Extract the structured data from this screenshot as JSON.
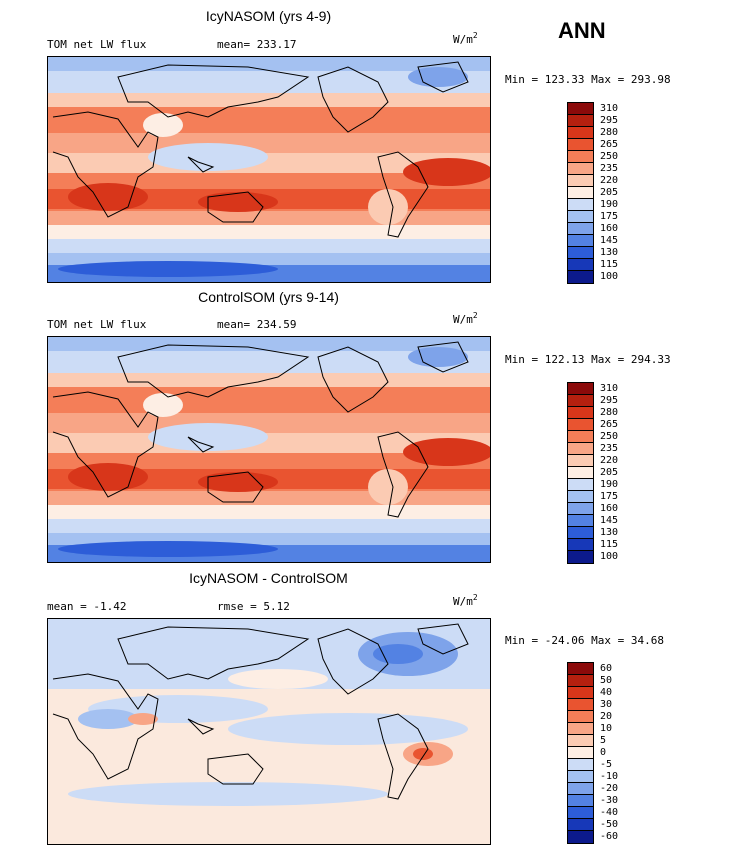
{
  "season": "ANN",
  "units": "W/m",
  "units_exp": "2",
  "panels": [
    {
      "title": "IcyNASOM (yrs 4-9)",
      "left_label": "TOM net LW flux",
      "stat_label": "mean= 233.17",
      "minmax": "Min = 123.33 Max = 293.98",
      "levels": [
        "310",
        "295",
        "280",
        "265",
        "250",
        "235",
        "220",
        "205",
        "190",
        "175",
        "160",
        "145",
        "130",
        "115",
        "100"
      ]
    },
    {
      "title": "ControlSOM (yrs 9-14)",
      "left_label": "TOM net LW flux",
      "stat_label": "mean= 234.59",
      "minmax": "Min = 122.13 Max = 294.33",
      "levels": [
        "310",
        "295",
        "280",
        "265",
        "250",
        "235",
        "220",
        "205",
        "190",
        "175",
        "160",
        "145",
        "130",
        "115",
        "100"
      ]
    },
    {
      "title": "IcyNASOM - ControlSOM",
      "left_label": "mean =   -1.42",
      "stat_label": "rmse =    5.12",
      "minmax": "Min = -24.06 Max =  34.68",
      "levels": [
        "60",
        "50",
        "40",
        "30",
        "20",
        "10",
        "5",
        "0",
        "-5",
        "-10",
        "-20",
        "-30",
        "-40",
        "-50",
        "-60"
      ]
    }
  ],
  "colors": {
    "colorbar": [
      "#8b0a0a",
      "#b5200f",
      "#d8361a",
      "#e95430",
      "#f47e58",
      "#f8a586",
      "#fbcbb3",
      "#fdeee4",
      "#ccdcf6",
      "#a4c1f1",
      "#7ea3ea",
      "#5382e3",
      "#2d5dd8",
      "#1738b8",
      "#0c1a8c"
    ],
    "panel_bg": [
      "#f7b39a",
      "#f7b39a",
      "#fbe9dd"
    ]
  }
}
